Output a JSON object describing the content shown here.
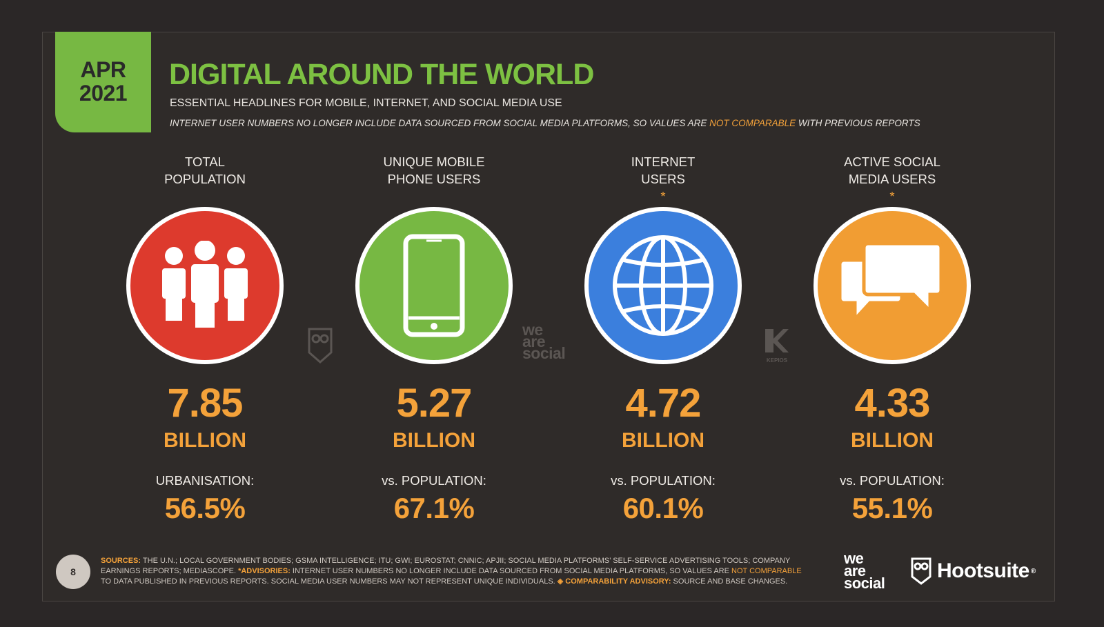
{
  "badge": {
    "month": "APR",
    "year": "2021"
  },
  "title": "DIGITAL AROUND THE WORLD",
  "subtitle": "ESSENTIAL HEADLINES FOR MOBILE, INTERNET, AND SOCIAL MEDIA USE",
  "note": {
    "before": "INTERNET USER NUMBERS NO LONGER INCLUDE DATA SOURCED FROM SOCIAL MEDIA PLATFORMS, SO VALUES ARE ",
    "highlight": "NOT COMPARABLE",
    "after": " WITH PREVIOUS REPORTS"
  },
  "stats": [
    {
      "label_line1": "TOTAL",
      "label_line2": "POPULATION",
      "asterisk": "",
      "icon": "people-icon",
      "color": "#dd3a2d",
      "value": "7.85",
      "unit": "BILLION",
      "sub_label": "URBANISATION:",
      "percent": "56.5%"
    },
    {
      "label_line1": "UNIQUE MOBILE",
      "label_line2": "PHONE USERS",
      "asterisk": "",
      "icon": "mobile-phone-icon",
      "color": "#77b843",
      "value": "5.27",
      "unit": "BILLION",
      "sub_label": "vs. POPULATION:",
      "percent": "67.1%"
    },
    {
      "label_line1": "INTERNET",
      "label_line2": "USERS",
      "asterisk": "*",
      "icon": "globe-icon",
      "color": "#3b7fdd",
      "value": "4.72",
      "unit": "BILLION",
      "sub_label": "vs. POPULATION:",
      "percent": "60.1%"
    },
    {
      "label_line1": "ACTIVE SOCIAL",
      "label_line2": "MEDIA USERS",
      "asterisk": "*",
      "icon": "speech-bubbles-icon",
      "color": "#f19d33",
      "value": "4.33",
      "unit": "BILLION",
      "sub_label": "vs. POPULATION:",
      "percent": "55.1%"
    }
  ],
  "watermarks": {
    "we_are_social": [
      "we",
      "are",
      "social"
    ],
    "kepios": "KEPIOS"
  },
  "footer": {
    "page_number": "8",
    "sources_label": "SOURCES:",
    "sources_text": " THE U.N.; LOCAL GOVERNMENT BODIES; GSMA INTELLIGENCE; ITU; GWI; EUROSTAT; CNNIC; APJII; SOCIAL MEDIA PLATFORMS’ SELF-SERVICE ADVERTISING TOOLS; COMPANY EARNINGS REPORTS; MEDIASCOPE. ",
    "advisories_label": "*ADVISORIES:",
    "advisories_text": " INTERNET USER NUMBERS NO LONGER INCLUDE DATA SOURCED FROM SOCIAL MEDIA PLATFORMS, SO VALUES ARE ",
    "advisories_highlight": "NOT COMPARABLE",
    "advisories_tail": " TO DATA PUBLISHED IN PREVIOUS REPORTS. SOCIAL MEDIA USER NUMBERS MAY NOT REPRESENT UNIQUE INDIVIDUALS. ",
    "comparability_label": "◈ COMPARABILITY ADVISORY:",
    "comparability_text": " SOURCE AND BASE CHANGES."
  },
  "logos": {
    "we_are_social": [
      "we",
      "are",
      "social"
    ],
    "hootsuite": "Hootsuite",
    "registered": "®"
  }
}
